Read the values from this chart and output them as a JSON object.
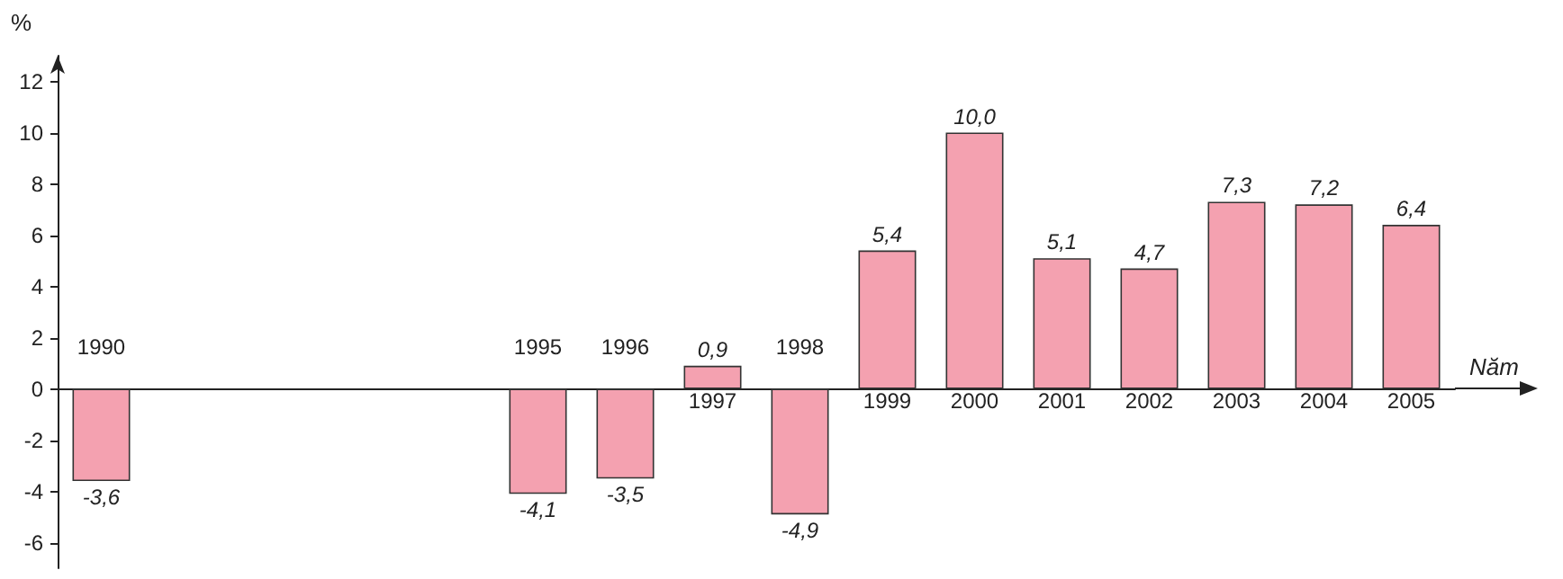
{
  "chart_data": {
    "type": "bar",
    "xlabel": "Năm",
    "ylabel": "%",
    "categories": [
      "1990",
      null,
      null,
      null,
      null,
      "1995",
      "1996",
      "1997",
      "1998",
      "1999",
      "2000",
      "2001",
      "2002",
      "2003",
      "2004",
      "2005"
    ],
    "values": [
      -3.6,
      null,
      null,
      null,
      null,
      -4.1,
      -3.5,
      0.9,
      -4.9,
      5.4,
      10.0,
      5.1,
      4.7,
      7.3,
      7.2,
      6.4
    ],
    "value_labels": [
      "-3,6",
      null,
      null,
      null,
      null,
      "-4,1",
      "-3,5",
      "0,9",
      "-4,9",
      "5,4",
      "10,0",
      "5,1",
      "4,7",
      "7,3",
      "7,2",
      "6,4"
    ],
    "color": "#f4a1b0",
    "ylim": [
      -7,
      13
    ],
    "yticks": [
      -6,
      -4,
      -2,
      0,
      2,
      4,
      6,
      8,
      10,
      12
    ]
  }
}
